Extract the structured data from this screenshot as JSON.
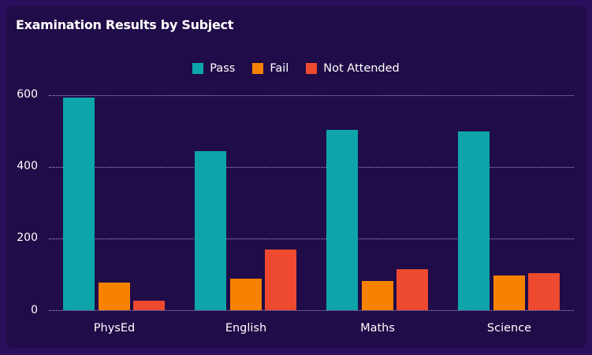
{
  "card": {
    "title": "Examination Results by Subject"
  },
  "legend": [
    {
      "label": "Pass",
      "color": "#0da5ab"
    },
    {
      "label": "Fail",
      "color": "#f78200"
    },
    {
      "label": "Not Attended",
      "color": "#ed4a2f"
    }
  ],
  "y_axis": {
    "ticks": [
      "0",
      "200",
      "400",
      "600"
    ]
  },
  "x_axis": {
    "labels": [
      "PhysEd",
      "English",
      "Maths",
      "Science"
    ]
  },
  "chart_data": {
    "type": "bar",
    "title": "Examination Results by Subject",
    "categories": [
      "PhysEd",
      "English",
      "Maths",
      "Science"
    ],
    "series": [
      {
        "name": "Pass",
        "color": "#0da5ab",
        "values": [
          595,
          445,
          505,
          500
        ]
      },
      {
        "name": "Fail",
        "color": "#f78200",
        "values": [
          77,
          89,
          82,
          97
        ]
      },
      {
        "name": "Not Attended",
        "color": "#ed4a2f",
        "values": [
          27,
          170,
          115,
          104
        ]
      }
    ],
    "xlabel": "",
    "ylabel": "",
    "ylim": [
      0,
      600
    ],
    "yticks": [
      0,
      200,
      400,
      600
    ],
    "grid": true,
    "legend_position": "top"
  }
}
